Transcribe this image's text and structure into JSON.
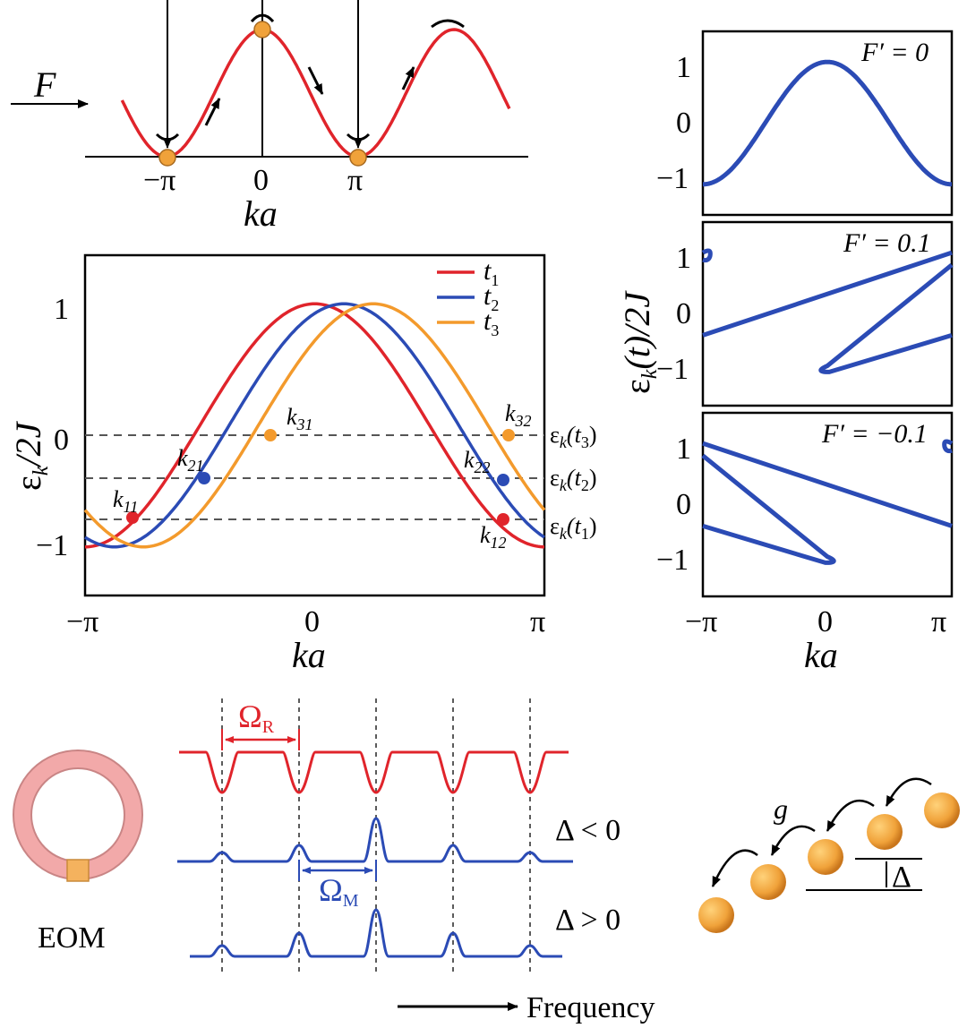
{
  "colors": {
    "red": "#e0242b",
    "blue": "#2b4bb5",
    "orange": "#f39a2c",
    "ball": "#f0a23a",
    "ring": "#f2a9a9",
    "eom": "#f4b25e"
  },
  "top_panel": {
    "force_label": "F",
    "ticks": [
      "−π",
      "0",
      "π"
    ],
    "xlabel": "ka"
  },
  "main_panel": {
    "ylabel": "ε",
    "ylabel_sub": "k",
    "ylabel_rest": "/2J",
    "xlabel": "ka",
    "xticks": [
      "−π",
      "0",
      "π"
    ],
    "yticks": [
      "1",
      "0",
      "−1"
    ],
    "legend": [
      {
        "name": "t",
        "sub": "1",
        "color": "#e0242b"
      },
      {
        "name": "t",
        "sub": "2",
        "color": "#2b4bb5"
      },
      {
        "name": "t",
        "sub": "3",
        "color": "#f39a2c"
      }
    ],
    "levels": [
      {
        "label": "ε",
        "sub": "k",
        "arg": "(t",
        "argsub": "3",
        "close": ")"
      },
      {
        "label": "ε",
        "sub": "k",
        "arg": "(t",
        "argsub": "2",
        "close": ")"
      },
      {
        "label": "ε",
        "sub": "k",
        "arg": "(t",
        "argsub": "1",
        "close": ")"
      }
    ],
    "points": [
      {
        "k": "k",
        "sub": "11"
      },
      {
        "k": "k",
        "sub": "12"
      },
      {
        "k": "k",
        "sub": "21"
      },
      {
        "k": "k",
        "sub": "22"
      },
      {
        "k": "k",
        "sub": "31"
      },
      {
        "k": "k",
        "sub": "32"
      }
    ]
  },
  "chart_data": [
    {
      "type": "line",
      "title": "",
      "xlabel": "ka",
      "ylabel": "εk/2J",
      "xlim": [
        -3.1416,
        3.1416
      ],
      "ylim": [
        -1.4,
        1.4
      ],
      "series": [
        {
          "name": "t1",
          "formula": "cos(ka)",
          "shift": 0.0
        },
        {
          "name": "t2",
          "formula": "cos(ka-0.4)",
          "shift": 0.4
        },
        {
          "name": "t3",
          "formula": "cos(ka-0.8)",
          "shift": 0.8
        }
      ],
      "levels": [
        -0.05,
        -0.43,
        -0.8
      ]
    },
    {
      "type": "line",
      "title": "F′ = 0",
      "ylabel": "εk(t)/2J",
      "xlabel": "ka",
      "xlim": [
        -3.1416,
        3.1416
      ],
      "ylim": [
        -1.5,
        1.5
      ],
      "Fprime": 0
    },
    {
      "type": "line",
      "title": "F′ = 0.1",
      "xlim": [
        -3.1416,
        3.1416
      ],
      "ylim": [
        -1.5,
        1.5
      ],
      "Fprime": 0.1
    },
    {
      "type": "line",
      "title": "F′ = −0.1",
      "xlim": [
        -3.1416,
        3.1416
      ],
      "ylim": [
        -1.5,
        1.5
      ],
      "Fprime": -0.1
    }
  ],
  "right_panels": {
    "titles": [
      "F′ = 0",
      "F′ = 0.1",
      "F′ = −0.1"
    ],
    "ylabel": "ε",
    "ylabel_sub": "k",
    "ylabel_rest": "(t)/2J",
    "yticks": [
      "1",
      "0",
      "−1"
    ],
    "xticks": [
      "−π",
      "0",
      "π"
    ],
    "xlabel": "ka"
  },
  "bottom": {
    "omega_r": "Ω",
    "omega_r_sub": "R",
    "omega_m": "Ω",
    "omega_m_sub": "M",
    "delta_neg": "Δ < 0",
    "delta_pos": "Δ > 0",
    "eom": "EOM",
    "frequency": "Frequency",
    "g": "g",
    "delta": "Δ"
  }
}
